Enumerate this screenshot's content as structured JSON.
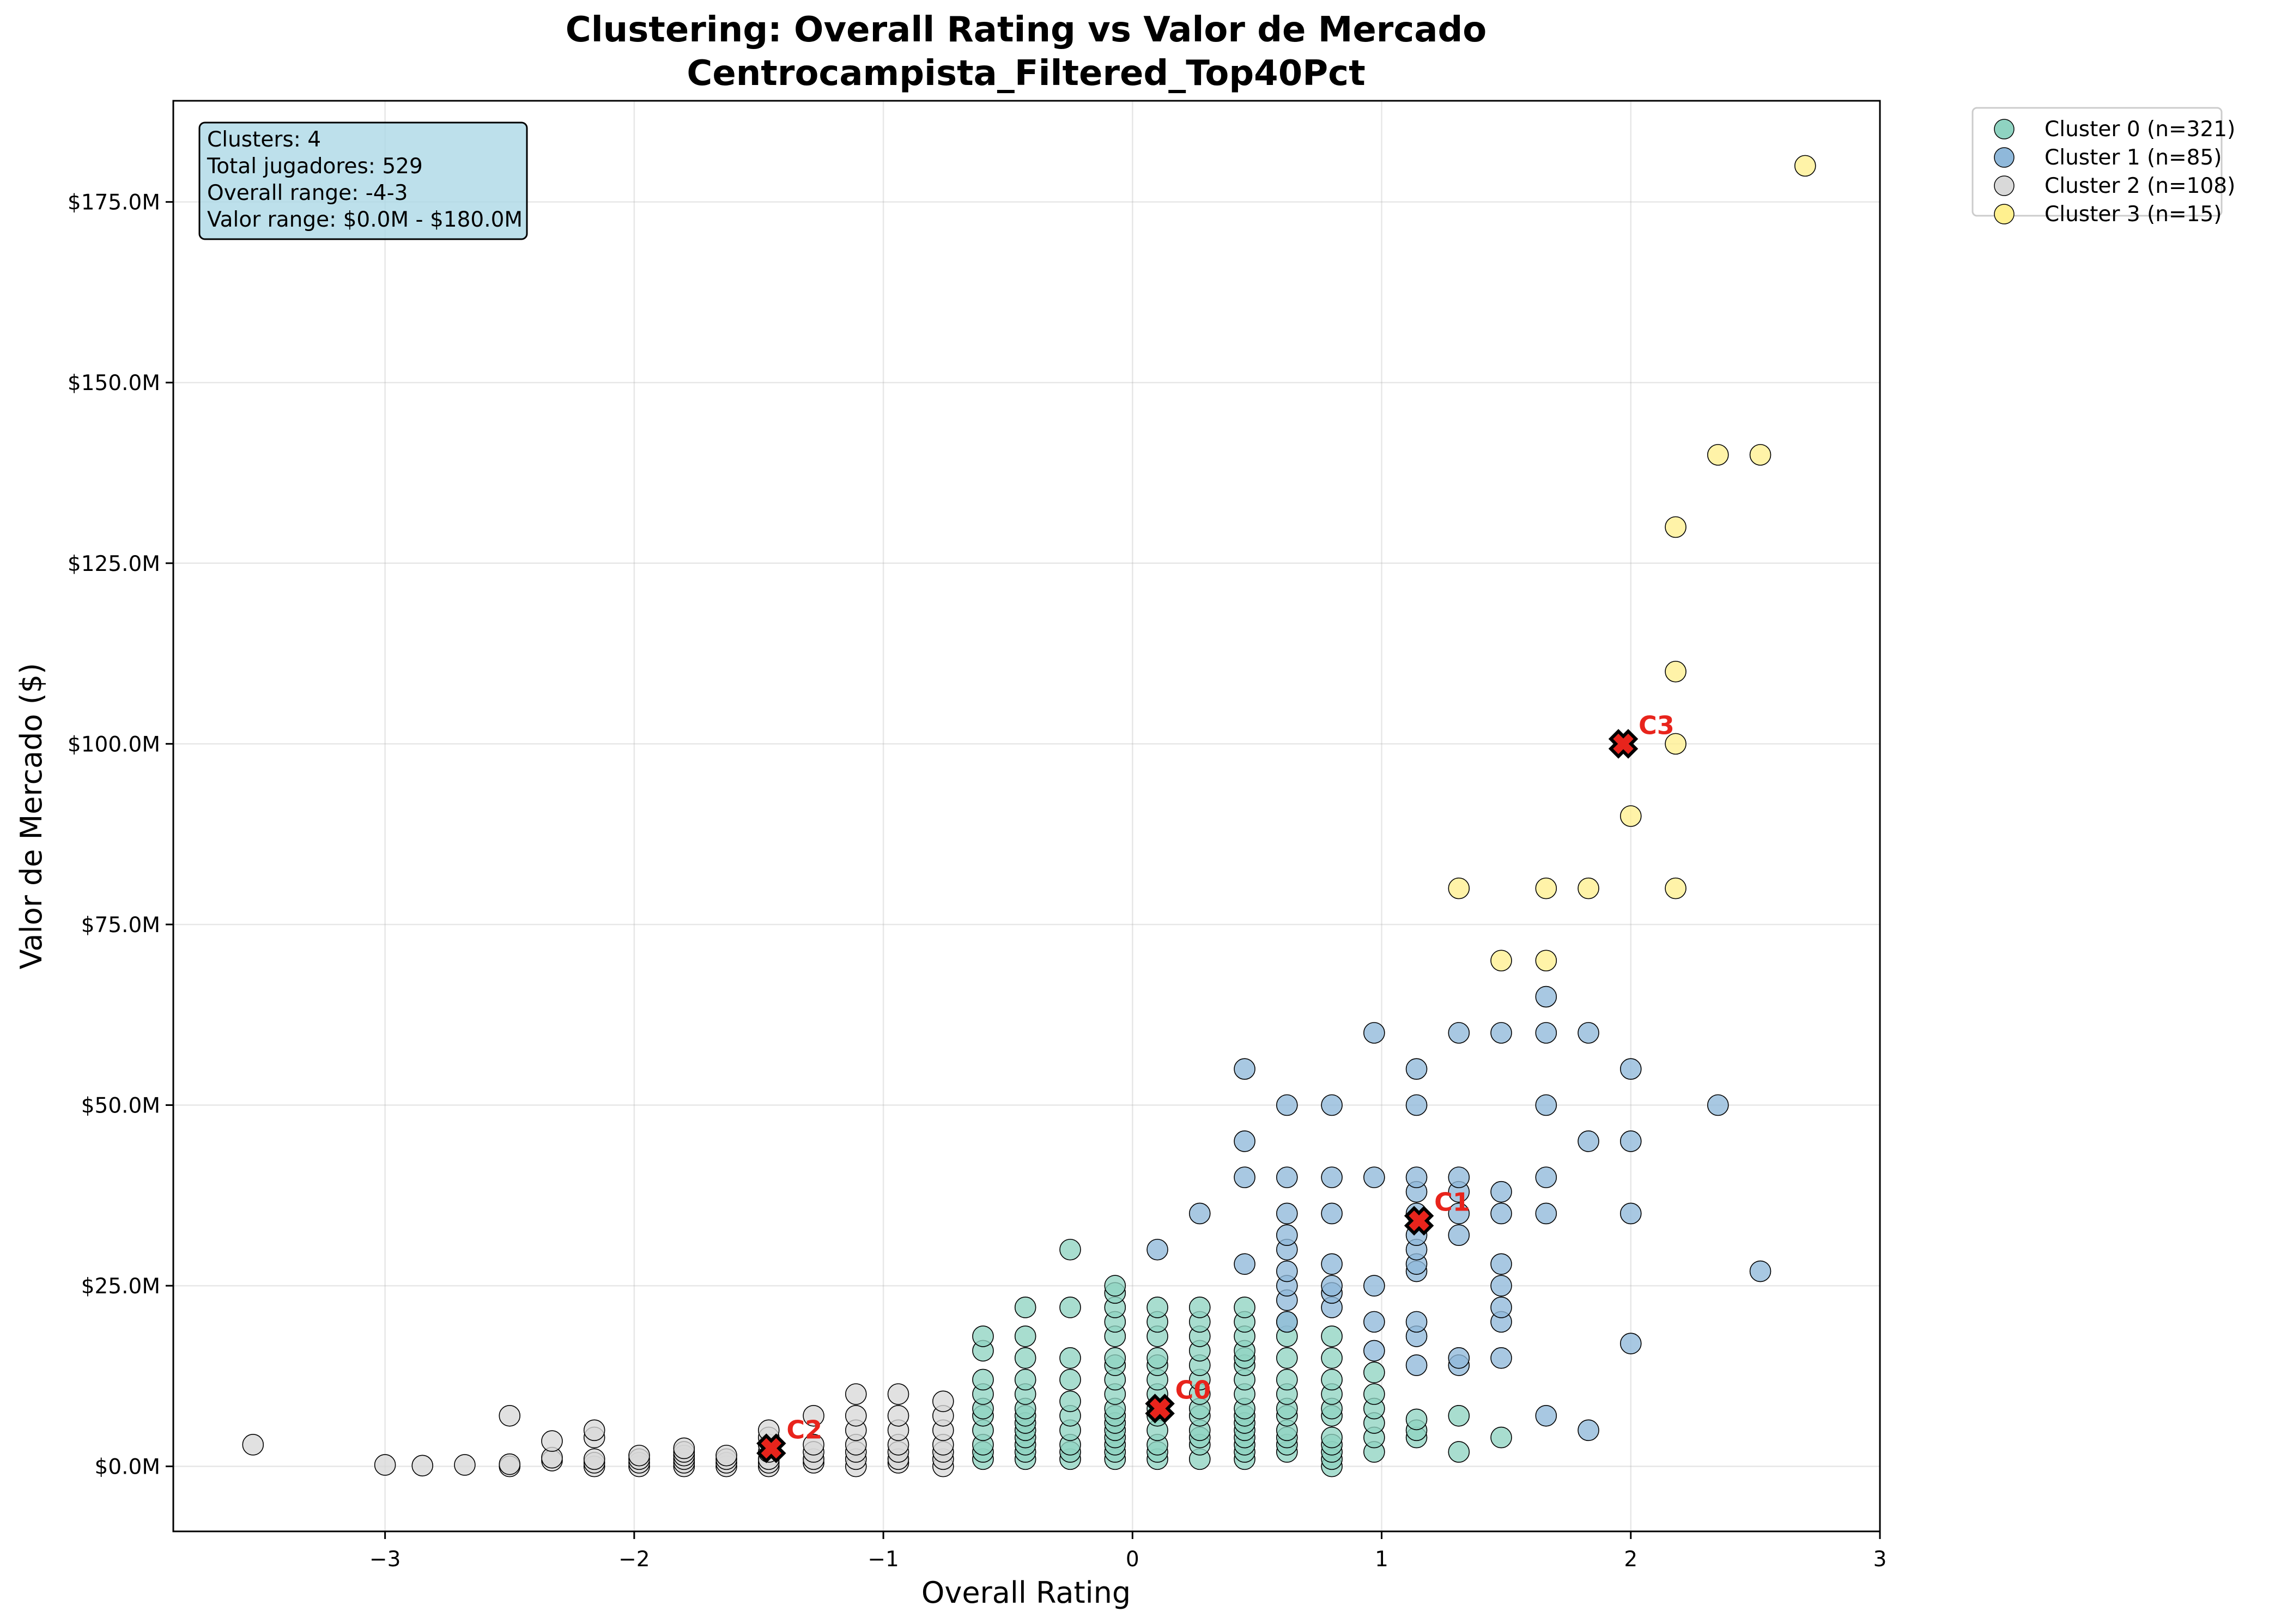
{
  "chart_data": {
    "type": "scatter",
    "title": "Clustering: Overall Rating vs Valor de Mercado",
    "subtitle": "Centrocampista_Filtered_Top40Pct",
    "xlabel": "Overall Rating",
    "ylabel": "Valor de Mercado ($)",
    "xlim": [
      -3.85,
      3.0
    ],
    "ylim": [
      -9,
      189
    ],
    "x_ticks": [
      -3,
      -2,
      -1,
      0,
      1,
      2,
      3
    ],
    "x_tick_labels": [
      "−3",
      "−2",
      "−1",
      "0",
      "1",
      "2",
      "3"
    ],
    "y_ticks": [
      0,
      25,
      50,
      75,
      100,
      125,
      150,
      175
    ],
    "y_tick_labels": [
      "$0.0M",
      "$25.0M",
      "$50.0M",
      "$75.0M",
      "$100.0M",
      "$125.0M",
      "$150.0M",
      "$175.0M"
    ],
    "grid": true,
    "legend_placement": "outside-top-right",
    "info_box": {
      "lines": [
        "Clusters: 4",
        "Total jugadores: 529",
        "Overall range: -4-3",
        "Valor range: $0.0M - $180.0M"
      ],
      "background": "#add8e6"
    },
    "series": [
      {
        "name": "Cluster 0 (n=321)",
        "color": "#8fd3c1",
        "points": [
          [
            -0.6,
            1
          ],
          [
            -0.6,
            2
          ],
          [
            -0.6,
            3
          ],
          [
            -0.6,
            5
          ],
          [
            -0.6,
            7
          ],
          [
            -0.6,
            8
          ],
          [
            -0.6,
            10
          ],
          [
            -0.6,
            12
          ],
          [
            -0.6,
            16
          ],
          [
            -0.6,
            18
          ],
          [
            -0.43,
            1
          ],
          [
            -0.43,
            2
          ],
          [
            -0.43,
            3
          ],
          [
            -0.43,
            4
          ],
          [
            -0.43,
            5
          ],
          [
            -0.43,
            6
          ],
          [
            -0.43,
            7
          ],
          [
            -0.43,
            8
          ],
          [
            -0.43,
            10
          ],
          [
            -0.43,
            12
          ],
          [
            -0.43,
            15
          ],
          [
            -0.43,
            18
          ],
          [
            -0.43,
            22
          ],
          [
            -0.25,
            1
          ],
          [
            -0.25,
            2
          ],
          [
            -0.25,
            3
          ],
          [
            -0.25,
            5
          ],
          [
            -0.25,
            7
          ],
          [
            -0.25,
            9
          ],
          [
            -0.25,
            12
          ],
          [
            -0.25,
            15
          ],
          [
            -0.25,
            22
          ],
          [
            -0.25,
            30
          ],
          [
            -0.07,
            1
          ],
          [
            -0.07,
            2
          ],
          [
            -0.07,
            3
          ],
          [
            -0.07,
            4
          ],
          [
            -0.07,
            5
          ],
          [
            -0.07,
            6
          ],
          [
            -0.07,
            7
          ],
          [
            -0.07,
            8
          ],
          [
            -0.07,
            10
          ],
          [
            -0.07,
            12
          ],
          [
            -0.07,
            14
          ],
          [
            -0.07,
            15
          ],
          [
            -0.07,
            18
          ],
          [
            -0.07,
            20
          ],
          [
            -0.07,
            22
          ],
          [
            -0.07,
            24
          ],
          [
            -0.07,
            25
          ],
          [
            0.1,
            1
          ],
          [
            0.1,
            2
          ],
          [
            0.1,
            3
          ],
          [
            0.1,
            5
          ],
          [
            0.1,
            7
          ],
          [
            0.1,
            8
          ],
          [
            0.1,
            10
          ],
          [
            0.1,
            12
          ],
          [
            0.1,
            14
          ],
          [
            0.1,
            15
          ],
          [
            0.1,
            18
          ],
          [
            0.1,
            20
          ],
          [
            0.1,
            22
          ],
          [
            0.27,
            1
          ],
          [
            0.27,
            3
          ],
          [
            0.27,
            4
          ],
          [
            0.27,
            5
          ],
          [
            0.27,
            7
          ],
          [
            0.27,
            8
          ],
          [
            0.27,
            10
          ],
          [
            0.27,
            12
          ],
          [
            0.27,
            14
          ],
          [
            0.27,
            16
          ],
          [
            0.27,
            18
          ],
          [
            0.27,
            20
          ],
          [
            0.27,
            22
          ],
          [
            0.45,
            1
          ],
          [
            0.45,
            2
          ],
          [
            0.45,
            3
          ],
          [
            0.45,
            4
          ],
          [
            0.45,
            5
          ],
          [
            0.45,
            6
          ],
          [
            0.45,
            7
          ],
          [
            0.45,
            8
          ],
          [
            0.45,
            10
          ],
          [
            0.45,
            12
          ],
          [
            0.45,
            14
          ],
          [
            0.45,
            15
          ],
          [
            0.45,
            16
          ],
          [
            0.45,
            18
          ],
          [
            0.45,
            20
          ],
          [
            0.45,
            22
          ],
          [
            0.62,
            2
          ],
          [
            0.62,
            3
          ],
          [
            0.62,
            4
          ],
          [
            0.62,
            5
          ],
          [
            0.62,
            7
          ],
          [
            0.62,
            8
          ],
          [
            0.62,
            10
          ],
          [
            0.62,
            12
          ],
          [
            0.62,
            15
          ],
          [
            0.62,
            18
          ],
          [
            0.62,
            20
          ],
          [
            0.8,
            0
          ],
          [
            0.8,
            1
          ],
          [
            0.8,
            2
          ],
          [
            0.8,
            3
          ],
          [
            0.8,
            4
          ],
          [
            0.8,
            7
          ],
          [
            0.8,
            8
          ],
          [
            0.8,
            10
          ],
          [
            0.8,
            12
          ],
          [
            0.8,
            15
          ],
          [
            0.8,
            18
          ],
          [
            0.97,
            2
          ],
          [
            0.97,
            4
          ],
          [
            0.97,
            6
          ],
          [
            0.97,
            8
          ],
          [
            0.97,
            10
          ],
          [
            0.97,
            13
          ],
          [
            1.14,
            4
          ],
          [
            1.14,
            5
          ],
          [
            1.14,
            6.5
          ],
          [
            1.31,
            2
          ],
          [
            1.31,
            7
          ],
          [
            1.48,
            4
          ]
        ]
      },
      {
        "name": "Cluster 1 (n=85)",
        "color": "#8fb8da",
        "points": [
          [
            0.1,
            30
          ],
          [
            0.27,
            35
          ],
          [
            0.45,
            28
          ],
          [
            0.45,
            40
          ],
          [
            0.45,
            45
          ],
          [
            0.45,
            55
          ],
          [
            0.62,
            20
          ],
          [
            0.62,
            23
          ],
          [
            0.62,
            25
          ],
          [
            0.62,
            27
          ],
          [
            0.62,
            30
          ],
          [
            0.62,
            32
          ],
          [
            0.62,
            35
          ],
          [
            0.62,
            40
          ],
          [
            0.62,
            50
          ],
          [
            0.8,
            22
          ],
          [
            0.8,
            24
          ],
          [
            0.8,
            25
          ],
          [
            0.8,
            28
          ],
          [
            0.8,
            35
          ],
          [
            0.8,
            40
          ],
          [
            0.8,
            50
          ],
          [
            0.97,
            16
          ],
          [
            0.97,
            20
          ],
          [
            0.97,
            25
          ],
          [
            0.97,
            40
          ],
          [
            0.97,
            60
          ],
          [
            1.14,
            14
          ],
          [
            1.14,
            18
          ],
          [
            1.14,
            20
          ],
          [
            1.14,
            27
          ],
          [
            1.14,
            28
          ],
          [
            1.14,
            30
          ],
          [
            1.14,
            32
          ],
          [
            1.14,
            35
          ],
          [
            1.14,
            38
          ],
          [
            1.14,
            40
          ],
          [
            1.14,
            50
          ],
          [
            1.14,
            55
          ],
          [
            1.31,
            14
          ],
          [
            1.31,
            15
          ],
          [
            1.31,
            32
          ],
          [
            1.31,
            35
          ],
          [
            1.31,
            38
          ],
          [
            1.31,
            40
          ],
          [
            1.31,
            60
          ],
          [
            1.48,
            15
          ],
          [
            1.48,
            20
          ],
          [
            1.48,
            22
          ],
          [
            1.48,
            25
          ],
          [
            1.48,
            28
          ],
          [
            1.48,
            35
          ],
          [
            1.48,
            38
          ],
          [
            1.48,
            60
          ],
          [
            1.66,
            7
          ],
          [
            1.66,
            35
          ],
          [
            1.66,
            40
          ],
          [
            1.66,
            50
          ],
          [
            1.66,
            60
          ],
          [
            1.66,
            65
          ],
          [
            1.83,
            5
          ],
          [
            1.83,
            45
          ],
          [
            1.83,
            60
          ],
          [
            2.0,
            17
          ],
          [
            2.0,
            35
          ],
          [
            2.0,
            45
          ],
          [
            2.0,
            55
          ],
          [
            2.35,
            50
          ],
          [
            2.52,
            27
          ]
        ]
      },
      {
        "name": "Cluster 2 (n=108)",
        "color": "#d9d9d9",
        "points": [
          [
            -3.53,
            3
          ],
          [
            -3.0,
            0.2
          ],
          [
            -2.85,
            0.1
          ],
          [
            -2.68,
            0.2
          ],
          [
            -2.5,
            0
          ],
          [
            -2.5,
            0.3
          ],
          [
            -2.5,
            7
          ],
          [
            -2.33,
            0.8
          ],
          [
            -2.33,
            1.2
          ],
          [
            -2.33,
            3.5
          ],
          [
            -2.16,
            0
          ],
          [
            -2.16,
            0.5
          ],
          [
            -2.16,
            1
          ],
          [
            -2.16,
            4
          ],
          [
            -2.16,
            5
          ],
          [
            -1.98,
            0
          ],
          [
            -1.98,
            0.5
          ],
          [
            -1.98,
            1
          ],
          [
            -1.98,
            1.5
          ],
          [
            -1.8,
            0
          ],
          [
            -1.8,
            0.5
          ],
          [
            -1.8,
            1
          ],
          [
            -1.8,
            1.5
          ],
          [
            -1.8,
            2
          ],
          [
            -1.8,
            2.5
          ],
          [
            -1.63,
            0
          ],
          [
            -1.63,
            0.5
          ],
          [
            -1.63,
            1
          ],
          [
            -1.63,
            1.5
          ],
          [
            -1.46,
            0
          ],
          [
            -1.46,
            0.5
          ],
          [
            -1.46,
            1
          ],
          [
            -1.46,
            2
          ],
          [
            -1.46,
            3
          ],
          [
            -1.46,
            4
          ],
          [
            -1.46,
            5
          ],
          [
            -1.28,
            0.5
          ],
          [
            -1.28,
            1
          ],
          [
            -1.28,
            2
          ],
          [
            -1.28,
            3
          ],
          [
            -1.28,
            7
          ],
          [
            -1.11,
            0
          ],
          [
            -1.11,
            1
          ],
          [
            -1.11,
            2
          ],
          [
            -1.11,
            3
          ],
          [
            -1.11,
            5
          ],
          [
            -1.11,
            7
          ],
          [
            -1.11,
            10
          ],
          [
            -0.94,
            0.5
          ],
          [
            -0.94,
            1
          ],
          [
            -0.94,
            2
          ],
          [
            -0.94,
            3
          ],
          [
            -0.94,
            5
          ],
          [
            -0.94,
            7
          ],
          [
            -0.94,
            10
          ],
          [
            -0.76,
            0
          ],
          [
            -0.76,
            1
          ],
          [
            -0.76,
            2
          ],
          [
            -0.76,
            3
          ],
          [
            -0.76,
            5
          ],
          [
            -0.76,
            7
          ],
          [
            -0.76,
            9
          ]
        ]
      },
      {
        "name": "Cluster 3 (n=15)",
        "color": "#fff08f",
        "points": [
          [
            1.31,
            80
          ],
          [
            1.48,
            70
          ],
          [
            1.66,
            70
          ],
          [
            1.66,
            80
          ],
          [
            1.83,
            80
          ],
          [
            2.0,
            90
          ],
          [
            2.18,
            80
          ],
          [
            2.18,
            100
          ],
          [
            2.18,
            110
          ],
          [
            2.18,
            130
          ],
          [
            2.35,
            140
          ],
          [
            2.52,
            140
          ],
          [
            2.7,
            180
          ]
        ]
      }
    ],
    "centroids": [
      {
        "label": "C0",
        "x": 0.11,
        "y": 8
      },
      {
        "label": "C1",
        "x": 1.15,
        "y": 34
      },
      {
        "label": "C2",
        "x": -1.45,
        "y": 2.5
      },
      {
        "label": "C3",
        "x": 1.97,
        "y": 100
      }
    ],
    "centroid_color": "#e8241c"
  }
}
